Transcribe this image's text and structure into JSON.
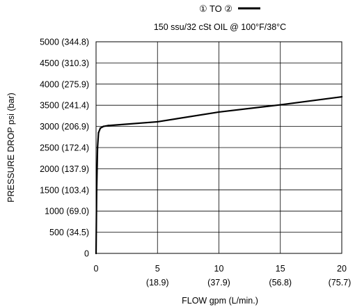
{
  "chart_data": {
    "type": "line",
    "legend": {
      "label": "① TO ②",
      "placement": "top-right"
    },
    "subtitle": "150 ssu/32 cSt OIL @ 100°F/38°C",
    "xlabel": "FLOW gpm (L/min.)",
    "ylabel": "PRESSURE DROP psi (bar)",
    "xlim": [
      0,
      20
    ],
    "ylim": [
      0,
      5000
    ],
    "grid": true,
    "x_ticks": [
      {
        "value": 0,
        "label": "0",
        "sublabel": ""
      },
      {
        "value": 5,
        "label": "5",
        "sublabel": "(18.9)"
      },
      {
        "value": 10,
        "label": "10",
        "sublabel": "(37.9)"
      },
      {
        "value": 15,
        "label": "15",
        "sublabel": "(56.8)"
      },
      {
        "value": 20,
        "label": "20",
        "sublabel": "(75.7)"
      }
    ],
    "y_ticks": [
      {
        "value": 0,
        "label": "0"
      },
      {
        "value": 500,
        "label": "500 (34.5)"
      },
      {
        "value": 1000,
        "label": "1000 (69.0)"
      },
      {
        "value": 1500,
        "label": "1500 (103.4)"
      },
      {
        "value": 2000,
        "label": "2000 (137.9)"
      },
      {
        "value": 2500,
        "label": "2500 (172.4)"
      },
      {
        "value": 3000,
        "label": "3000 (206.9)"
      },
      {
        "value": 3500,
        "label": "3500 (241.4)"
      },
      {
        "value": 4000,
        "label": "4000 (275.9)"
      },
      {
        "value": 4500,
        "label": "4500 (310.3)"
      },
      {
        "value": 5000,
        "label": "5000 (344.8)"
      }
    ],
    "series": [
      {
        "name": "① TO ②",
        "color": "#000000",
        "points": [
          {
            "x": 0,
            "y": 0
          },
          {
            "x": 0.05,
            "y": 1500
          },
          {
            "x": 0.12,
            "y": 2500
          },
          {
            "x": 0.2,
            "y": 2850
          },
          {
            "x": 0.35,
            "y": 2960
          },
          {
            "x": 0.6,
            "y": 3000
          },
          {
            "x": 1.0,
            "y": 3020
          },
          {
            "x": 5,
            "y": 3110
          },
          {
            "x": 10,
            "y": 3340
          },
          {
            "x": 15,
            "y": 3510
          },
          {
            "x": 20,
            "y": 3700
          }
        ]
      }
    ]
  }
}
